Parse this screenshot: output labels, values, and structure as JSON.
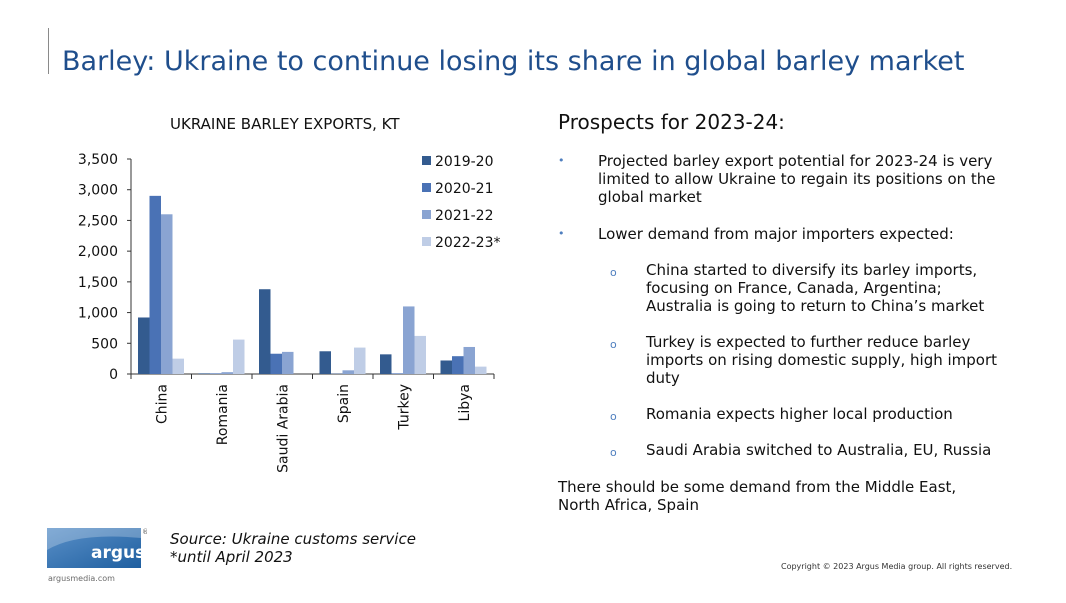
{
  "header": {
    "title": "Barley: Ukraine to continue losing its share in global barley market"
  },
  "chart_data": {
    "type": "bar",
    "title": "UKRAINE BARLEY EXPORTS, KT",
    "categories": [
      "China",
      "Romania",
      "Saudi Arabia",
      "Spain",
      "Turkey",
      "Libya"
    ],
    "series": [
      {
        "name": "2019-20",
        "color": "#335b8f",
        "values": [
          920,
          10,
          1380,
          370,
          320,
          220
        ]
      },
      {
        "name": "2020-21",
        "color": "#4a72b5",
        "values": [
          2900,
          10,
          330,
          5,
          10,
          290
        ]
      },
      {
        "name": "2021-22",
        "color": "#8aa4d2",
        "values": [
          2600,
          30,
          360,
          60,
          1100,
          440
        ]
      },
      {
        "name": "2022-23*",
        "color": "#bfcde6",
        "values": [
          250,
          560,
          0,
          430,
          620,
          120
        ]
      }
    ],
    "ylim": [
      0,
      3500
    ],
    "yticks": [
      0,
      500,
      1000,
      1500,
      2000,
      2500,
      3000,
      3500
    ],
    "ytick_labels": [
      "0",
      "500",
      "1,000",
      "1,500",
      "2,000",
      "2,500",
      "3,000",
      "3,500"
    ],
    "legend_position": "top-right"
  },
  "prospects": {
    "title": "Prospects for 2023-24:",
    "bullets": [
      {
        "mark": "•",
        "lines": [
          "Projected barley export potential for 2023-24 is very",
          "limited to allow Ukraine to regain its positions on the",
          "global market"
        ]
      },
      {
        "mark": "•",
        "lines": [
          "Lower demand from major importers expected:"
        ]
      }
    ],
    "sub_bullets": [
      {
        "mark": "o",
        "lines": [
          "China started to diversify its barley imports,",
          "focusing on France, Canada, Argentina;",
          "Australia is going to return to China’s market"
        ]
      },
      {
        "mark": "o",
        "lines": [
          "Turkey is expected to further reduce barley",
          "imports on rising domestic supply, high import",
          "duty"
        ]
      },
      {
        "mark": "o",
        "lines": [
          "Romania expects higher local production"
        ]
      },
      {
        "mark": "o",
        "lines": [
          "Saudi Arabia switched to Australia, EU, Russia"
        ]
      }
    ],
    "closing": [
      "There should be some demand from the Middle East,",
      "North Africa, Spain"
    ]
  },
  "footer": {
    "logo_text": "argus",
    "logo_registered": "®",
    "url": "argusmedia.com",
    "source_line1": "Source: Ukraine customs service",
    "source_line2": "*until April 2023",
    "copyright": "Copyright © 2023 Argus Media group. All rights reserved."
  }
}
